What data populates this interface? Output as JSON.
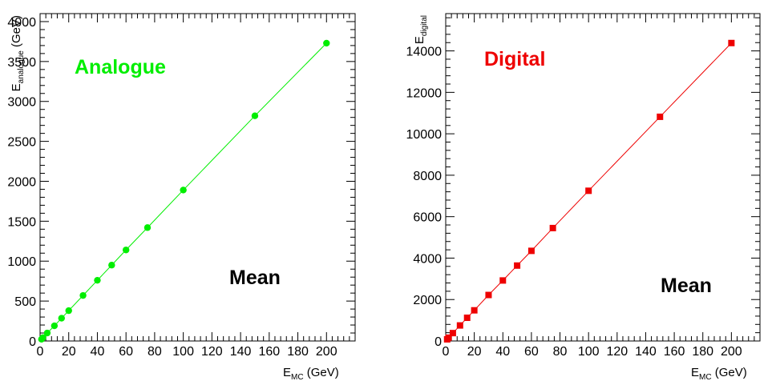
{
  "chart_data": [
    {
      "type": "line",
      "panel_label": "Analogue",
      "annotation": "Mean",
      "x_title_main": "E",
      "x_title_sub": "MC",
      "x_title_unit": " (GeV)",
      "y_title_main": "E",
      "y_title_sub": "analogue",
      "y_title_unit": " (GeV)",
      "xlim": [
        0,
        220
      ],
      "ylim": [
        0,
        4100
      ],
      "x_ticks": [
        0,
        20,
        40,
        60,
        80,
        100,
        120,
        140,
        160,
        180,
        200
      ],
      "y_ticks": [
        0,
        500,
        1000,
        1500,
        2000,
        2500,
        3000,
        3500,
        4000
      ],
      "color": "#00ee00",
      "marker": "circle",
      "x": [
        1,
        2,
        5,
        10,
        15,
        20,
        30,
        40,
        50,
        60,
        75,
        100,
        150,
        200
      ],
      "y": [
        22,
        42,
        100,
        190,
        285,
        380,
        570,
        760,
        950,
        1140,
        1420,
        1890,
        2820,
        3730
      ]
    },
    {
      "type": "line",
      "panel_label": "Digital",
      "annotation": "Mean",
      "x_title_main": "E",
      "x_title_sub": "MC",
      "x_title_unit": " (GeV)",
      "y_title_main": "E",
      "y_title_sub": "digital",
      "y_title_unit": "",
      "xlim": [
        0,
        220
      ],
      "ylim": [
        0,
        15800
      ],
      "x_ticks": [
        0,
        20,
        40,
        60,
        80,
        100,
        120,
        140,
        160,
        180,
        200
      ],
      "y_ticks": [
        0,
        2000,
        4000,
        6000,
        8000,
        10000,
        12000,
        14000
      ],
      "color": "#ee0000",
      "marker": "square",
      "x": [
        1,
        2,
        5,
        10,
        15,
        20,
        30,
        40,
        50,
        60,
        75,
        100,
        150,
        200
      ],
      "y": [
        80,
        160,
        380,
        750,
        1120,
        1480,
        2220,
        2920,
        3640,
        4350,
        5450,
        7250,
        10820,
        14380
      ]
    }
  ]
}
